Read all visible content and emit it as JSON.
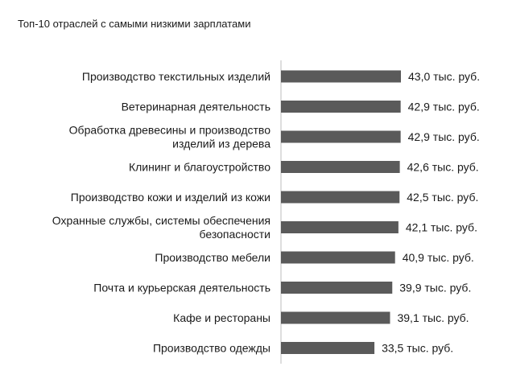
{
  "chart_data": {
    "type": "bar",
    "orientation": "horizontal",
    "title": "Топ-10 отраслей с самыми низкими зарплатами",
    "categories": [
      [
        "Производство текстильных изделий"
      ],
      [
        "Ветеринарная деятельность"
      ],
      [
        "Обработка древесины и производство",
        "изделий из дерева"
      ],
      [
        "Клининг и благоустройство"
      ],
      [
        "Производство кожи и изделий из кожи"
      ],
      [
        "Охранные службы, системы обеспечения",
        "безопасности"
      ],
      [
        "Производство мебели"
      ],
      [
        "Почта и курьерская деятельность"
      ],
      [
        "Кафе и рестораны"
      ],
      [
        "Производство одежды"
      ]
    ],
    "values": [
      43.0,
      42.9,
      42.9,
      42.6,
      42.5,
      42.1,
      40.9,
      39.9,
      39.1,
      33.5
    ],
    "value_labels": [
      "43,0 тыс. руб.",
      "42,9 тыс. руб.",
      "42,9 тыс. руб.",
      "42,6 тыс. руб.",
      "42,5 тыс. руб.",
      "42,1 тыс. руб.",
      "40,9 тыс. руб.",
      "39,9 тыс. руб.",
      "39,1 тыс. руб.",
      "33,5 тыс. руб."
    ],
    "unit": "тыс. руб.",
    "xlim": [
      0,
      43.0
    ],
    "grid": false,
    "legend": "none",
    "colors": {
      "bar": "#5a5a5a",
      "axis": "#bdbdbd",
      "text": "#1a1a1a"
    }
  }
}
